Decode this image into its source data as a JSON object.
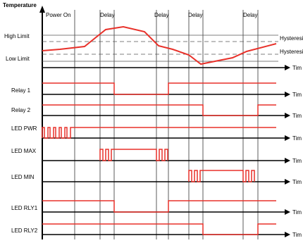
{
  "colors": {
    "signal": "#e8312a",
    "axis": "#000000",
    "guide": "#333333",
    "limit": "#555555"
  },
  "header": {
    "y_axis_label": "Temperature"
  },
  "events": {
    "power_on": "Power On",
    "delay": "Delay"
  },
  "limits": {
    "high": "High Limit",
    "low": "Low Limit",
    "hysteresis": "Hysteresi"
  },
  "time_label": "Tim",
  "channels": [
    {
      "label": "Relay 1"
    },
    {
      "label": "Relay 2"
    },
    {
      "label": "LED PWR"
    },
    {
      "label": "LED MAX"
    },
    {
      "label": "LED MIN"
    },
    {
      "label": "LED RLY1"
    },
    {
      "label": "LED RLY2"
    }
  ]
}
